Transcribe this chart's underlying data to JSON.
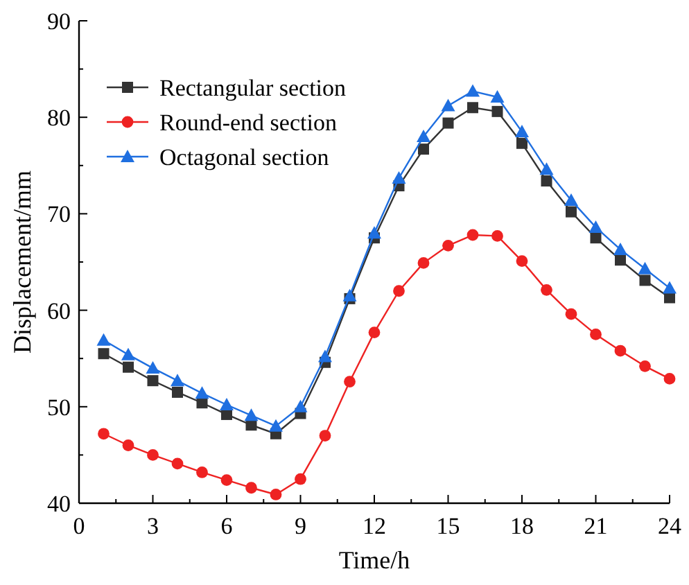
{
  "chart_data": {
    "type": "line",
    "xlabel": "Time/h",
    "ylabel": "Displacement/mm",
    "x": [
      1,
      2,
      3,
      4,
      5,
      6,
      7,
      8,
      9,
      10,
      11,
      12,
      13,
      14,
      15,
      16,
      17,
      18,
      19,
      20,
      21,
      22,
      23,
      24
    ],
    "xlim": [
      0,
      24
    ],
    "xticks": [
      0,
      3,
      6,
      9,
      12,
      15,
      18,
      21,
      24
    ],
    "ylim": [
      40,
      90
    ],
    "yticks": [
      40,
      50,
      60,
      70,
      80,
      90
    ],
    "grid": false,
    "legend": "top left",
    "line_style": "solid",
    "series": [
      {
        "name": "Rectangular section",
        "color": "#333333",
        "marker": "square",
        "values": [
          55.5,
          54.1,
          52.7,
          51.5,
          50.4,
          49.2,
          48.1,
          47.2,
          49.3,
          54.6,
          61.2,
          67.5,
          72.9,
          76.7,
          79.4,
          81.0,
          80.6,
          77.3,
          73.4,
          70.2,
          67.5,
          65.2,
          63.1,
          61.3
        ]
      },
      {
        "name": "Round-end section",
        "color": "#ee2222",
        "marker": "circle",
        "values": [
          47.2,
          46.0,
          45.0,
          44.1,
          43.2,
          42.4,
          41.6,
          40.9,
          42.5,
          47.0,
          52.6,
          57.7,
          62.0,
          64.9,
          66.7,
          67.8,
          67.7,
          65.1,
          62.1,
          59.6,
          57.5,
          55.8,
          54.2,
          52.9
        ]
      },
      {
        "name": "Octagonal section",
        "color": "#1f6fe0",
        "marker": "triangle",
        "values": [
          56.9,
          55.4,
          54.0,
          52.7,
          51.4,
          50.2,
          49.1,
          48.0,
          50.0,
          55.2,
          61.5,
          68.0,
          73.7,
          78.0,
          81.2,
          82.7,
          82.1,
          78.5,
          74.6,
          71.4,
          68.6,
          66.3,
          64.3,
          62.3
        ]
      }
    ]
  }
}
